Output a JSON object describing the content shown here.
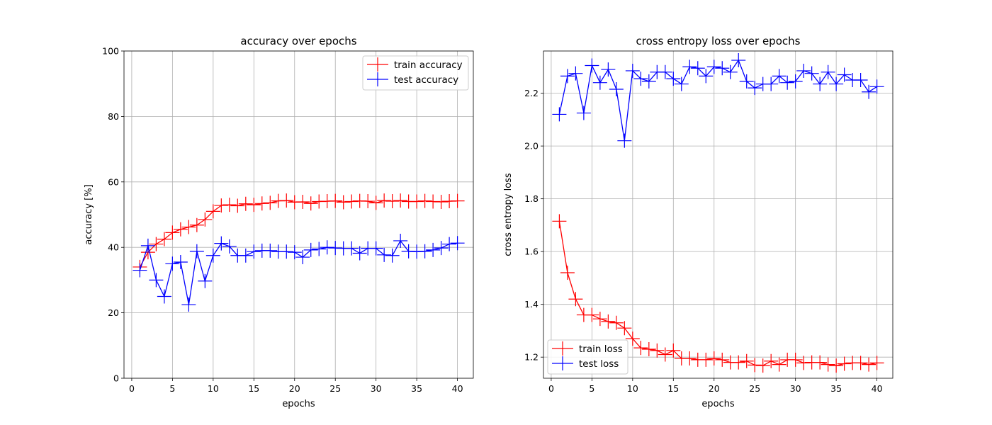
{
  "chart_data": [
    {
      "type": "line",
      "title": "accuracy over epochs",
      "xlabel": "epochs",
      "ylabel": "accuracy [%]",
      "xlim": [
        -0.95,
        41.95
      ],
      "ylim": [
        0,
        100
      ],
      "xticks": [
        "0",
        "5",
        "10",
        "15",
        "20",
        "25",
        "30",
        "35",
        "40"
      ],
      "yticks": [
        "0",
        "20",
        "40",
        "60",
        "80",
        "100"
      ],
      "grid": true,
      "legend": "upper right",
      "x": [
        1,
        2,
        3,
        4,
        5,
        6,
        7,
        8,
        9,
        10,
        11,
        12,
        13,
        14,
        15,
        16,
        17,
        18,
        19,
        20,
        21,
        22,
        23,
        24,
        25,
        26,
        27,
        28,
        29,
        30,
        31,
        32,
        33,
        34,
        35,
        36,
        37,
        38,
        39,
        40
      ],
      "series": [
        {
          "name": "train accuracy",
          "color": "#ff0000",
          "marker": "+",
          "values": [
            34,
            38.5,
            41,
            42.5,
            44.5,
            45.5,
            46.2,
            46.8,
            48.5,
            51,
            52.8,
            53,
            52.7,
            53.3,
            53,
            53.4,
            53.6,
            54.2,
            54.3,
            53.8,
            53.9,
            53.4,
            54,
            54.1,
            54.2,
            53.8,
            54,
            54.2,
            54.1,
            53.6,
            54.3,
            54.1,
            54.3,
            54,
            54,
            54.2,
            54,
            53.9,
            54.1,
            54.2
          ]
        },
        {
          "name": "test accuracy",
          "color": "#0000ff",
          "marker": "+",
          "values": [
            33,
            40.5,
            30,
            25,
            35,
            35.5,
            22.5,
            38.8,
            29.7,
            37.5,
            41.2,
            40.3,
            37.5,
            37.5,
            38.7,
            39,
            39,
            38.7,
            38.7,
            38.5,
            37,
            39.2,
            39.5,
            40,
            39.8,
            39.7,
            39.7,
            38.2,
            39.7,
            39.7,
            37.7,
            37.5,
            42,
            38.8,
            38.7,
            38.8,
            39.2,
            39.8,
            41,
            41.3
          ]
        }
      ]
    },
    {
      "type": "line",
      "title": "cross entropy loss over epochs",
      "xlabel": "epochs",
      "ylabel": "cross entropy loss",
      "xlim": [
        -0.95,
        41.95
      ],
      "ylim": [
        1.12,
        2.36
      ],
      "xticks": [
        "0",
        "5",
        "10",
        "15",
        "20",
        "25",
        "30",
        "35",
        "40"
      ],
      "yticks": [
        "1.2",
        "1.4",
        "1.6",
        "1.8",
        "2.0",
        "2.2"
      ],
      "grid": true,
      "legend": "lower left",
      "x": [
        1,
        2,
        3,
        4,
        5,
        6,
        7,
        8,
        9,
        10,
        11,
        12,
        13,
        14,
        15,
        16,
        17,
        18,
        19,
        20,
        21,
        22,
        23,
        24,
        25,
        26,
        27,
        28,
        29,
        30,
        31,
        32,
        33,
        34,
        35,
        36,
        37,
        38,
        39,
        40
      ],
      "series": [
        {
          "name": "train loss",
          "color": "#ff0000",
          "marker": "+",
          "values": [
            1.715,
            1.52,
            1.42,
            1.36,
            1.36,
            1.345,
            1.335,
            1.33,
            1.31,
            1.27,
            1.235,
            1.23,
            1.225,
            1.21,
            1.225,
            1.195,
            1.195,
            1.19,
            1.19,
            1.195,
            1.19,
            1.18,
            1.18,
            1.185,
            1.17,
            1.168,
            1.185,
            1.172,
            1.19,
            1.19,
            1.178,
            1.18,
            1.18,
            1.172,
            1.168,
            1.175,
            1.178,
            1.178,
            1.172,
            1.178
          ]
        },
        {
          "name": "test loss",
          "color": "#0000ff",
          "marker": "+",
          "values": [
            2.12,
            2.265,
            2.275,
            2.125,
            2.305,
            2.24,
            2.29,
            2.215,
            2.02,
            2.285,
            2.255,
            2.245,
            2.28,
            2.28,
            2.255,
            2.235,
            2.3,
            2.295,
            2.265,
            2.3,
            2.295,
            2.28,
            2.325,
            2.245,
            2.22,
            2.235,
            2.235,
            2.265,
            2.24,
            2.245,
            2.285,
            2.275,
            2.235,
            2.28,
            2.235,
            2.27,
            2.25,
            2.25,
            2.205,
            2.225
          ]
        }
      ]
    }
  ]
}
